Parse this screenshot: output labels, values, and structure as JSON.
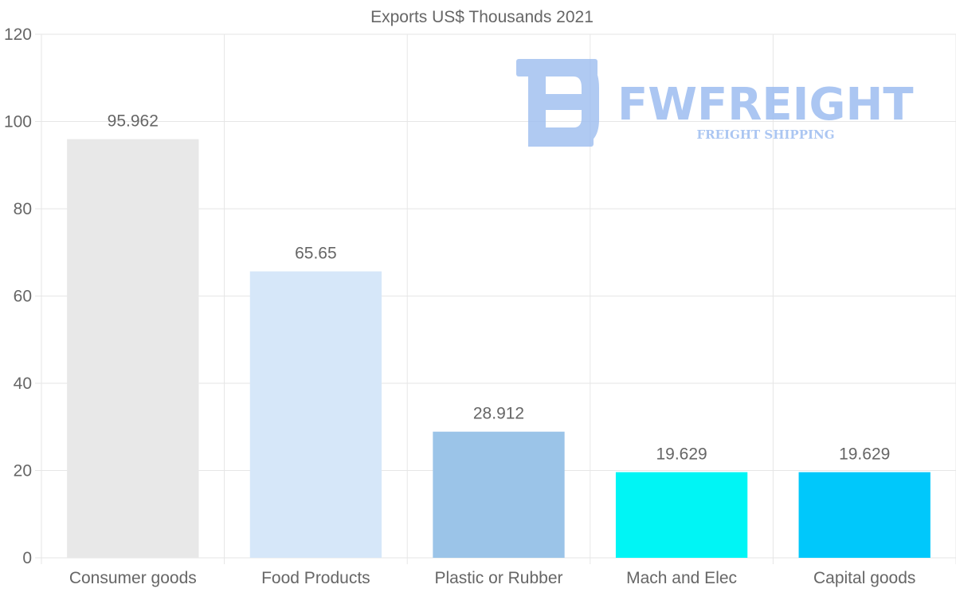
{
  "chart_data": {
    "type": "bar",
    "title": "Exports US$ Thousands 2021",
    "categories": [
      "Consumer goods",
      "Food Products",
      "Plastic or Rubber",
      "Mach and Elec",
      "Capital goods"
    ],
    "values": [
      95.962,
      65.65,
      28.912,
      19.629,
      19.629
    ],
    "value_labels": [
      "95.962",
      "65.65",
      "28.912",
      "19.629",
      "19.629"
    ],
    "colors": [
      "#e8e8e8",
      "#d6e7f9",
      "#9bc4e8",
      "#00f5f5",
      "#00c8fb"
    ],
    "ylim": [
      0,
      120
    ],
    "yticks": [
      0,
      20,
      40,
      60,
      80,
      100,
      120
    ],
    "xlabel": "",
    "ylabel": "",
    "grid": true
  },
  "watermark": {
    "brand": "FWFREIGHT",
    "tagline": "FREIGHT SHIPPING",
    "color": "#9dbdf0"
  }
}
